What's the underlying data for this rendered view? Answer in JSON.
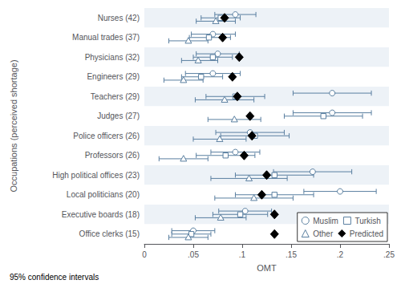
{
  "chart_data": {
    "type": "dot",
    "orientation": "horizontal",
    "categories": [
      "Nurses (42)",
      "Manual trades (37)",
      "Physicians (32)",
      "Engineers (29)",
      "Teachers (29)",
      "Judges (27)",
      "Police officers (26)",
      "Professors (26)",
      "High political offices (23)",
      "Local politicians (20)",
      "Executive boards (18)",
      "Office clerks (15)"
    ],
    "series": [
      {
        "name": "Muslim",
        "marker": "circle",
        "color": "#5a7fa0",
        "values": [
          0.093,
          0.07,
          0.075,
          0.07,
          0.192,
          0.192,
          0.108,
          0.093,
          0.172,
          0.2,
          0.103,
          0.05
        ],
        "ci_low": [
          0.072,
          0.048,
          0.053,
          0.042,
          0.152,
          0.152,
          0.073,
          0.068,
          0.132,
          0.163,
          0.076,
          0.028
        ],
        "ci_high": [
          0.114,
          0.093,
          0.097,
          0.098,
          0.232,
          0.232,
          0.143,
          0.118,
          0.212,
          0.237,
          0.13,
          0.072
        ]
      },
      {
        "name": "Turkish",
        "marker": "square",
        "color": "#5a7fa0",
        "values": [
          0.078,
          0.066,
          0.07,
          0.058,
          0.093,
          0.183,
          0.113,
          0.083,
          0.133,
          0.133,
          0.098,
          0.048
        ],
        "ci_low": [
          0.058,
          0.046,
          0.05,
          0.038,
          0.063,
          0.143,
          0.078,
          0.053,
          0.093,
          0.093,
          0.07,
          0.028
        ],
        "ci_high": [
          0.098,
          0.088,
          0.09,
          0.08,
          0.123,
          0.223,
          0.148,
          0.113,
          0.173,
          0.173,
          0.126,
          0.068
        ]
      },
      {
        "name": "Other",
        "marker": "triangle",
        "color": "#5a7fa0",
        "values": [
          0.073,
          0.045,
          0.055,
          0.04,
          0.082,
          0.092,
          0.077,
          0.04,
          0.107,
          0.112,
          0.078,
          0.045
        ],
        "ci_low": [
          0.053,
          0.025,
          0.038,
          0.02,
          0.052,
          0.065,
          0.05,
          0.015,
          0.068,
          0.072,
          0.052,
          0.025
        ],
        "ci_high": [
          0.093,
          0.065,
          0.075,
          0.06,
          0.112,
          0.119,
          0.104,
          0.065,
          0.146,
          0.152,
          0.104,
          0.065
        ]
      },
      {
        "name": "Predicted",
        "marker": "diamond",
        "color": "#000000",
        "values": [
          0.082,
          0.08,
          0.097,
          0.09,
          0.095,
          0.108,
          0.11,
          0.102,
          0.125,
          0.12,
          0.133,
          0.133
        ]
      }
    ],
    "xlim": [
      0,
      0.25
    ],
    "xticks": [
      0,
      {
        "value": 0.05,
        "label": ".05"
      },
      {
        "value": 0.1,
        "label": ".1"
      },
      {
        "value": 0.15,
        "label": ".15"
      },
      {
        "value": 0.2,
        "label": ".2"
      },
      {
        "value": 0.25,
        "label": ".25"
      }
    ],
    "xlabel": "OMT",
    "ylabel": "Occupations (perceived shortage)",
    "annotation": "95% confidence intervals",
    "legend": "lower right",
    "grid": false
  }
}
